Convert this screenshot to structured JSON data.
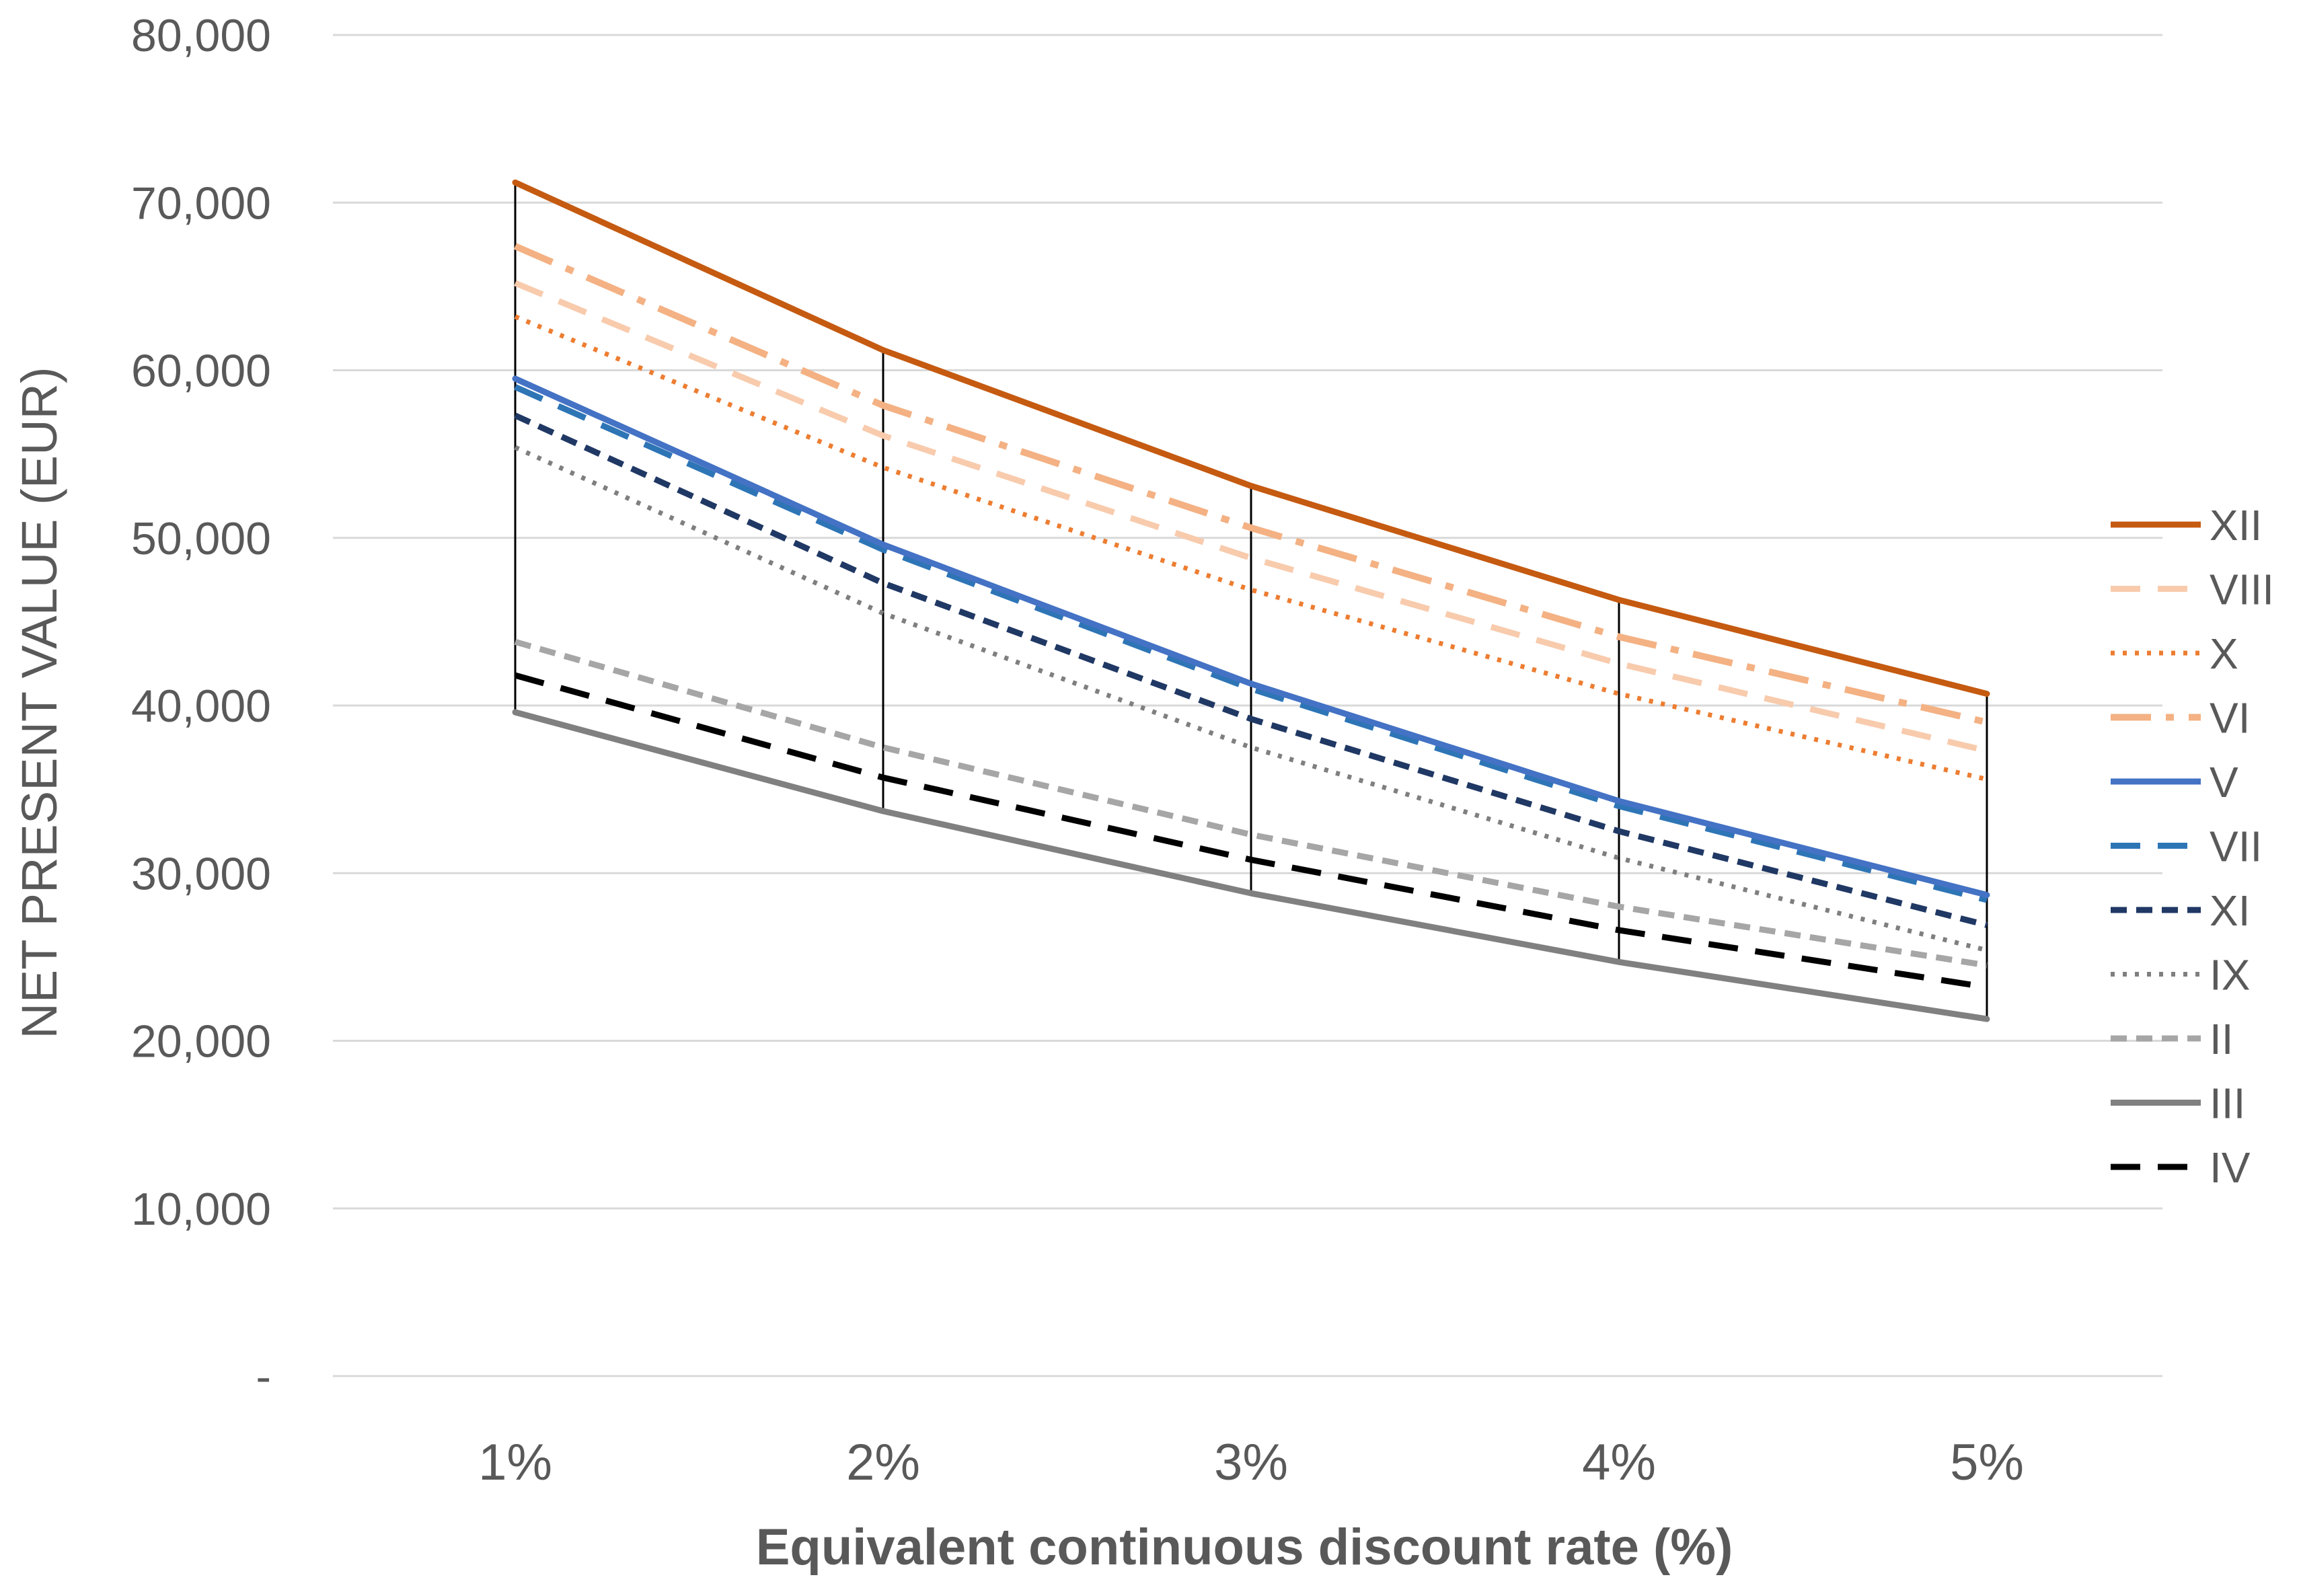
{
  "chart_data": {
    "type": "line",
    "title": "",
    "xlabel": "Equivalent continuous discount rate (%)",
    "ylabel": "NET PRESENT VALUE (EUR)",
    "categories": [
      "1%",
      "2%",
      "3%",
      "4%",
      "5%"
    ],
    "ylim": [
      0,
      80000
    ],
    "yticks": [
      {
        "value": 0,
        "label": "-"
      },
      {
        "value": 10000,
        "label": "10,000"
      },
      {
        "value": 20000,
        "label": "20,000"
      },
      {
        "value": 30000,
        "label": "30,000"
      },
      {
        "value": 40000,
        "label": "40,000"
      },
      {
        "value": 50000,
        "label": "50,000"
      },
      {
        "value": 60000,
        "label": "60,000"
      },
      {
        "value": 70000,
        "label": "70,000"
      },
      {
        "value": 80000,
        "label": "80,000"
      }
    ],
    "grid": true,
    "legend_position": "right",
    "drop_lines": true,
    "series": [
      {
        "name": "XII",
        "values": [
          71200,
          61200,
          53100,
          46300,
          40700
        ],
        "color": "#C55A11",
        "style": "solid"
      },
      {
        "name": "VIII",
        "values": [
          65200,
          56100,
          48800,
          42500,
          37300
        ],
        "color": "#F8CBAD",
        "style": "dash"
      },
      {
        "name": "X",
        "values": [
          63200,
          54200,
          46900,
          40700,
          35600
        ],
        "color": "#ED7D31",
        "style": "dot"
      },
      {
        "name": "VI",
        "values": [
          67400,
          57900,
          50600,
          44100,
          39000
        ],
        "color": "#F4B183",
        "style": "dashdot"
      },
      {
        "name": "V",
        "values": [
          59500,
          49600,
          41300,
          34300,
          28700
        ],
        "color": "#4472C4",
        "style": "solid"
      },
      {
        "name": "VII",
        "values": [
          59000,
          49300,
          41000,
          34000,
          28400
        ],
        "color": "#2E75B6",
        "style": "dash"
      },
      {
        "name": "XI",
        "values": [
          57300,
          47300,
          39200,
          32500,
          26900
        ],
        "color": "#203864",
        "style": "shortdash"
      },
      {
        "name": "IX",
        "values": [
          55400,
          45500,
          37500,
          30900,
          25400
        ],
        "color": "#7F7F7F",
        "style": "dot"
      },
      {
        "name": "II",
        "values": [
          43800,
          37500,
          32300,
          28000,
          24500
        ],
        "color": "#A6A6A6",
        "style": "shortdash"
      },
      {
        "name": "III",
        "values": [
          39600,
          33700,
          28800,
          24700,
          21300
        ],
        "color": "#808080",
        "style": "solid"
      },
      {
        "name": "IV",
        "values": [
          41800,
          35700,
          30800,
          26600,
          23200
        ],
        "color": "#000000",
        "style": "dash"
      }
    ]
  }
}
